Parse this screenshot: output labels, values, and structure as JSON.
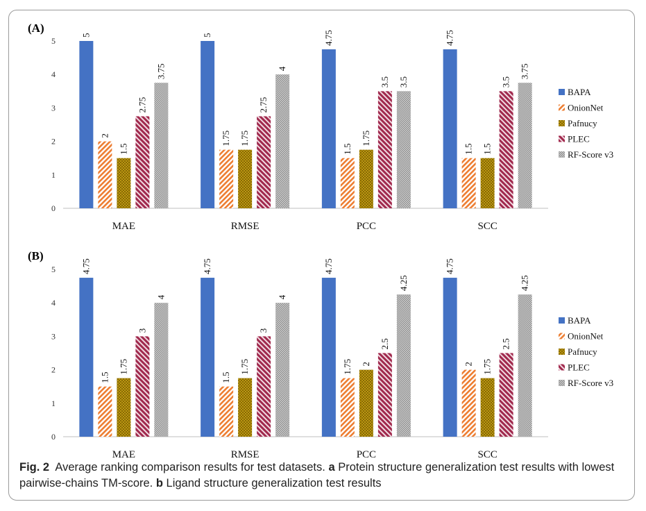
{
  "colors": {
    "BAPA": "#4472c4",
    "OnionNet": "#ed7d31",
    "Pafnucy": "#c9a316",
    "PLEC": "#a0294d",
    "RF-Score v3": "#a6a6a6"
  },
  "chart_data": [
    {
      "type": "bar",
      "panel_label": "(A)",
      "categories": [
        "MAE",
        "RMSE",
        "PCC",
        "SCC"
      ],
      "ylim": [
        0,
        5
      ],
      "yticks": [
        "0",
        "1",
        "2",
        "3",
        "4",
        "5"
      ],
      "grid": false,
      "legend": "right",
      "series": [
        {
          "name": "BAPA",
          "pattern": "solid",
          "values": [
            5,
            5,
            4.75,
            4.75
          ],
          "labels": [
            "5",
            "5",
            "4.75",
            "4.75"
          ]
        },
        {
          "name": "OnionNet",
          "pattern": "diag",
          "values": [
            2,
            1.75,
            1.5,
            1.5
          ],
          "labels": [
            "2",
            "1.75",
            "1.5",
            "1.5"
          ]
        },
        {
          "name": "Pafnucy",
          "pattern": "cross",
          "values": [
            1.5,
            1.75,
            1.75,
            1.5
          ],
          "labels": [
            "1.5",
            "1.75",
            "1.75",
            "1.5"
          ]
        },
        {
          "name": "PLEC",
          "pattern": "zigzag",
          "values": [
            2.75,
            2.75,
            3.5,
            3.5
          ],
          "labels": [
            "2.75",
            "2.75",
            "3.5",
            "3.5"
          ]
        },
        {
          "name": "RF-Score v3",
          "pattern": "dots",
          "values": [
            3.75,
            4,
            3.5,
            3.75
          ],
          "labels": [
            "3.75",
            "4",
            "3.5",
            "3.75"
          ]
        }
      ]
    },
    {
      "type": "bar",
      "panel_label": "(B)",
      "categories": [
        "MAE",
        "RMSE",
        "PCC",
        "SCC"
      ],
      "ylim": [
        0,
        5
      ],
      "yticks": [
        "0",
        "1",
        "2",
        "3",
        "4",
        "5"
      ],
      "grid": false,
      "legend": "right",
      "series": [
        {
          "name": "BAPA",
          "pattern": "solid",
          "values": [
            4.75,
            4.75,
            4.75,
            4.75
          ],
          "labels": [
            "4.75",
            "4.75",
            "4.75",
            "4.75"
          ]
        },
        {
          "name": "OnionNet",
          "pattern": "diag",
          "values": [
            1.5,
            1.5,
            1.75,
            2
          ],
          "labels": [
            "1.5",
            "1.5",
            "1.75",
            "2"
          ]
        },
        {
          "name": "Pafnucy",
          "pattern": "cross",
          "values": [
            1.75,
            1.75,
            2,
            1.75
          ],
          "labels": [
            "1.75",
            "1.75",
            "2",
            "1.75"
          ]
        },
        {
          "name": "PLEC",
          "pattern": "zigzag",
          "values": [
            3,
            3,
            2.5,
            2.5
          ],
          "labels": [
            "3",
            "3",
            "2.5",
            "2.5"
          ]
        },
        {
          "name": "RF-Score v3",
          "pattern": "dots",
          "values": [
            4,
            4,
            4.25,
            4.25
          ],
          "labels": [
            "4",
            "4",
            "4.25",
            "4.25"
          ]
        }
      ]
    }
  ],
  "caption": {
    "fig_label": "Fig. 2",
    "text_1": "Average ranking comparison results for test datasets.",
    "a_label": "a",
    "text_2": "Protein structure generalization test results with lowest pairwise-chains TM-score.",
    "b_label": "b",
    "text_3": "Ligand structure generalization test results"
  }
}
